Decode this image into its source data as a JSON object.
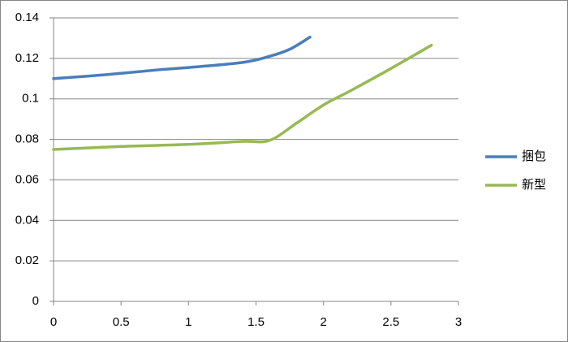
{
  "chart_data": {
    "type": "line",
    "xlim": [
      0,
      3
    ],
    "xticks": [
      0,
      0.5,
      1,
      1.5,
      2,
      2.5,
      3
    ],
    "ylim": [
      0,
      0.14
    ],
    "yticks": [
      0,
      0.02,
      0.04,
      0.06,
      0.08,
      0.1,
      0.12,
      0.14
    ],
    "grid": true,
    "legend": "right",
    "series": [
      {
        "name": "捆包",
        "color": "#4a7ebb",
        "x": [
          0,
          0.4,
          0.8,
          1.0,
          1.4,
          1.6,
          1.75,
          1.9
        ],
        "values": [
          0.11,
          0.112,
          0.1145,
          0.1155,
          0.118,
          0.121,
          0.1245,
          0.1305
        ]
      },
      {
        "name": "新型",
        "color": "#98b954",
        "x": [
          0,
          0.5,
          1.0,
          1.4,
          1.6,
          1.8,
          2.0,
          2.2,
          2.5,
          2.8
        ],
        "values": [
          0.075,
          0.0765,
          0.0775,
          0.079,
          0.0795,
          0.088,
          0.097,
          0.104,
          0.115,
          0.1265
        ]
      }
    ]
  }
}
